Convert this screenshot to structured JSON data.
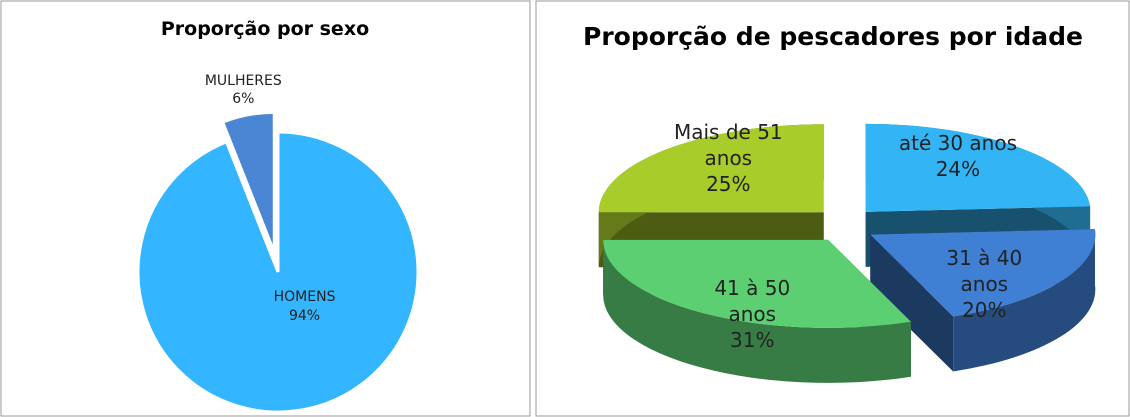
{
  "chart_data": [
    {
      "type": "pie",
      "title": "Proporção por sexo",
      "categories": [
        "HOMENS",
        "MULHERES"
      ],
      "values": [
        94,
        6
      ],
      "value_labels": [
        "94%",
        "6%"
      ],
      "colors": [
        "#33b5ff",
        "#4a86d4"
      ]
    },
    {
      "type": "pie3d",
      "title": "Proporção de pescadores por idade",
      "categories": [
        "até 30 anos",
        "31 à 40 anos",
        "41 à 50 anos",
        "Mais de 51 anos"
      ],
      "values": [
        24,
        20,
        31,
        25
      ],
      "value_labels": [
        "24%",
        "20%",
        "31%",
        "25%"
      ],
      "colors": [
        "#33b5f5",
        "#3f7fd4",
        "#5ccf72",
        "#a8cc2a"
      ]
    }
  ]
}
